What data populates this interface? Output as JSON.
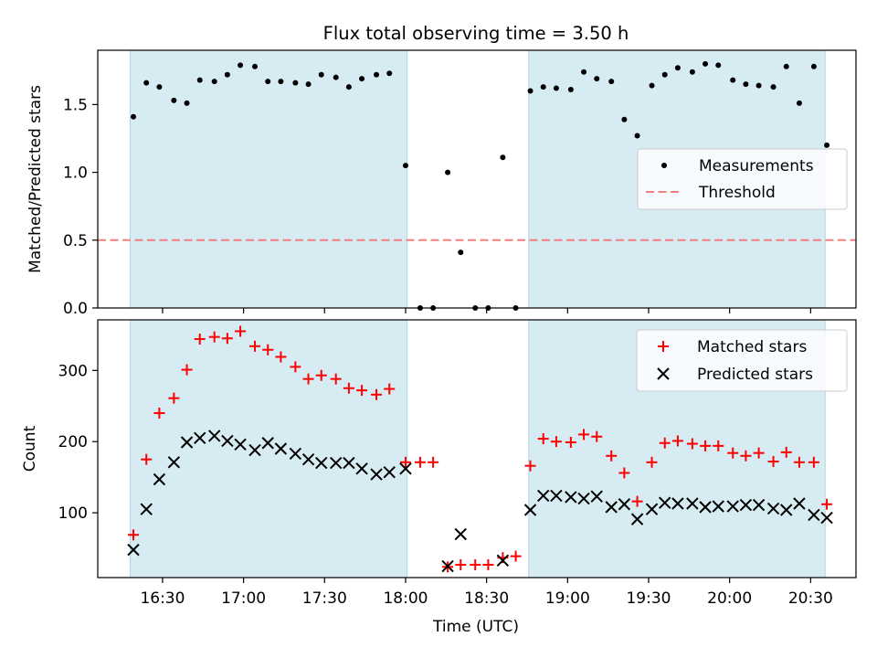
{
  "chart_data": [
    {
      "type": "scatter",
      "title": "Flux total observing time = 3.50 h",
      "xlabel": "",
      "ylabel": "Matched/Predicted stars",
      "xlim": [
        16.1,
        20.78
      ],
      "ylim": [
        0,
        1.9
      ],
      "yticks": [
        0.0,
        0.5,
        1.0,
        1.5
      ],
      "ytick_labels": [
        "0.0",
        "0.5",
        "1.0",
        "1.5"
      ],
      "threshold": 0.5,
      "shaded_ranges": [
        [
          16.3,
          18.01
        ],
        [
          18.76,
          20.59
        ]
      ],
      "legend": [
        "Measurements",
        "Threshold"
      ],
      "legend_position": "center-right",
      "series": [
        {
          "name": "Measurements",
          "x": [
            16.32,
            16.4,
            16.48,
            16.57,
            16.65,
            16.73,
            16.82,
            16.9,
            16.98,
            17.07,
            17.15,
            17.23,
            17.32,
            17.4,
            17.48,
            17.57,
            17.65,
            17.73,
            17.82,
            17.9,
            18.0,
            18.09,
            18.17,
            18.26,
            18.34,
            18.43,
            18.51,
            18.6,
            18.68,
            18.77,
            18.85,
            18.93,
            19.02,
            19.1,
            19.18,
            19.27,
            19.35,
            19.43,
            19.52,
            19.6,
            19.68,
            19.77,
            19.85,
            19.93,
            20.02,
            20.1,
            20.18,
            20.27,
            20.35,
            20.43,
            20.52,
            20.6
          ],
          "values": [
            1.41,
            1.66,
            1.63,
            1.53,
            1.51,
            1.68,
            1.67,
            1.72,
            1.79,
            1.78,
            1.67,
            1.67,
            1.66,
            1.65,
            1.72,
            1.7,
            1.63,
            1.69,
            1.72,
            1.73,
            1.05,
            0.0,
            0.0,
            1.0,
            0.41,
            0.0,
            0.0,
            1.11,
            0.0,
            1.6,
            1.63,
            1.62,
            1.61,
            1.74,
            1.69,
            1.67,
            1.39,
            1.27,
            1.64,
            1.72,
            1.77,
            1.74,
            1.8,
            1.79,
            1.68,
            1.65,
            1.64,
            1.63,
            1.78,
            1.51,
            1.78,
            1.2
          ]
        }
      ]
    },
    {
      "type": "scatter",
      "title": "",
      "xlabel": "Time (UTC)",
      "ylabel": "Count",
      "xlim": [
        16.1,
        20.78
      ],
      "ylim": [
        9,
        371
      ],
      "yticks": [
        100,
        200,
        300
      ],
      "ytick_labels": [
        "100",
        "200",
        "300"
      ],
      "xticks": [
        16.5,
        17.0,
        17.5,
        18.0,
        18.5,
        19.0,
        19.5,
        20.0,
        20.5
      ],
      "xtick_labels": [
        "16:30",
        "17:00",
        "17:30",
        "18:00",
        "18:30",
        "19:00",
        "19:30",
        "20:00",
        "20:30"
      ],
      "shaded_ranges": [
        [
          16.3,
          18.01
        ],
        [
          18.76,
          20.59
        ]
      ],
      "legend": [
        "Matched stars",
        "Predicted stars"
      ],
      "legend_position": "top-right",
      "series": [
        {
          "name": "Matched stars",
          "marker": "plus",
          "color": "#ff0000",
          "x": [
            16.32,
            16.4,
            16.48,
            16.57,
            16.65,
            16.73,
            16.82,
            16.9,
            16.98,
            17.07,
            17.15,
            17.23,
            17.32,
            17.4,
            17.48,
            17.57,
            17.65,
            17.73,
            17.82,
            17.9,
            18.0,
            18.09,
            18.17,
            18.26,
            18.34,
            18.43,
            18.51,
            18.6,
            18.68,
            18.77,
            18.85,
            18.93,
            19.02,
            19.1,
            19.18,
            19.27,
            19.35,
            19.43,
            19.52,
            19.6,
            19.68,
            19.77,
            19.85,
            19.93,
            20.02,
            20.1,
            20.18,
            20.27,
            20.35,
            20.43,
            20.52,
            20.6
          ],
          "values": [
            69,
            175,
            240,
            261,
            301,
            344,
            347,
            345,
            355,
            334,
            329,
            319,
            305,
            288,
            293,
            288,
            275,
            272,
            266,
            274,
            171,
            171,
            171,
            24,
            27,
            27,
            27,
            37,
            39,
            166,
            204,
            200,
            199,
            210,
            207,
            180,
            156,
            116,
            171,
            198,
            201,
            197,
            194,
            194,
            184,
            180,
            184,
            172,
            185,
            171,
            171,
            112
          ]
        },
        {
          "name": "Predicted stars",
          "marker": "x",
          "color": "#000000",
          "x": [
            16.32,
            16.4,
            16.48,
            16.57,
            16.65,
            16.73,
            16.82,
            16.9,
            16.98,
            17.07,
            17.15,
            17.23,
            17.32,
            17.4,
            17.48,
            17.57,
            17.65,
            17.73,
            17.82,
            17.9,
            18.0,
            18.26,
            18.34,
            18.6,
            18.77,
            18.85,
            18.93,
            19.02,
            19.1,
            19.18,
            19.27,
            19.35,
            19.43,
            19.52,
            19.6,
            19.68,
            19.77,
            19.85,
            19.93,
            20.02,
            20.1,
            20.18,
            20.27,
            20.35,
            20.43,
            20.52,
            20.6
          ],
          "values": [
            48,
            105,
            147,
            171,
            199,
            205,
            208,
            201,
            196,
            188,
            198,
            190,
            183,
            175,
            170,
            170,
            170,
            162,
            154,
            157,
            162,
            25,
            70,
            33,
            104,
            124,
            124,
            122,
            120,
            123,
            108,
            112,
            91,
            105,
            114,
            113,
            113,
            108,
            109,
            109,
            111,
            111,
            106,
            104,
            113,
            97,
            93
          ]
        }
      ]
    }
  ]
}
